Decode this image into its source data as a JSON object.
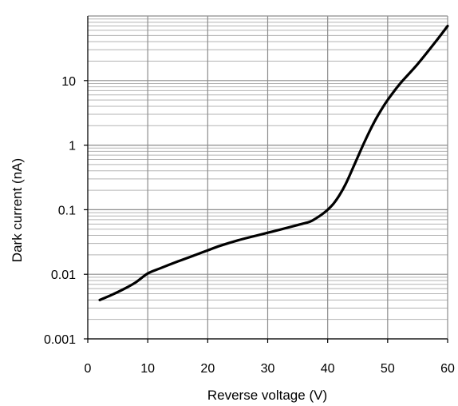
{
  "chart_data": {
    "type": "line",
    "title": "",
    "xlabel": "Reverse voltage  (V)",
    "ylabel": "Dark current  (nA)",
    "xlim": [
      0,
      60
    ],
    "ylim": [
      0.001,
      100
    ],
    "yscale": "log",
    "grid": true,
    "legend": "none",
    "x_ticks": [
      0,
      10,
      20,
      30,
      40,
      50,
      60
    ],
    "x_tick_labels": [
      "0",
      "10",
      "20",
      "30",
      "40",
      "50",
      "60"
    ],
    "y_ticks": [
      0.001,
      0.01,
      0.1,
      1,
      10
    ],
    "y_tick_labels": [
      "0.001",
      "0.01",
      "0.1",
      "1",
      "10"
    ],
    "series": [
      {
        "x": [
          2,
          4,
          6,
          8,
          10,
          12,
          15,
          18,
          20,
          22,
          25,
          28,
          30,
          32,
          35,
          37,
          38,
          39,
          40,
          41,
          42,
          43,
          44,
          45,
          46,
          47,
          48,
          49,
          50,
          52,
          55,
          58,
          60
        ],
        "y": [
          0.004,
          0.0048,
          0.0059,
          0.0075,
          0.0103,
          0.0123,
          0.0158,
          0.02,
          0.0235,
          0.0275,
          0.0335,
          0.0395,
          0.044,
          0.049,
          0.058,
          0.065,
          0.073,
          0.084,
          0.1,
          0.125,
          0.17,
          0.25,
          0.4,
          0.65,
          1.05,
          1.65,
          2.5,
          3.6,
          5.0,
          8.8,
          18.0,
          40.0,
          70.0
        ],
        "color": "#000000"
      }
    ]
  }
}
